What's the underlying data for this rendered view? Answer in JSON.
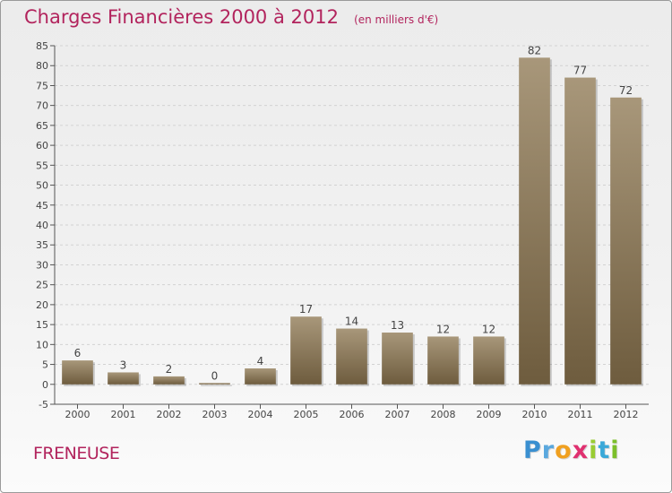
{
  "header": {
    "title": "Charges Financières 2000 à 2012",
    "subtitle": "(en milliers d'€)"
  },
  "footer": {
    "commune": "FRENEUSE"
  },
  "logo": {
    "letters": [
      "P",
      "r",
      "o",
      "x",
      "i",
      "t",
      "i"
    ],
    "colors": [
      "#3a8fd0",
      "#5aa8de",
      "#f0a020",
      "#e03070",
      "#9c3",
      "#3aa8d8",
      "#7bbf2a"
    ]
  },
  "colors": {
    "title": "#b2245d",
    "bar_light": "#a8977a",
    "bar_dark": "#6e5c3e",
    "grid": "#d2d2d2",
    "axis": "#555555"
  },
  "chart_data": {
    "type": "bar",
    "categories": [
      "2000",
      "2001",
      "2002",
      "2003",
      "2004",
      "2005",
      "2006",
      "2007",
      "2008",
      "2009",
      "2010",
      "2011",
      "2012"
    ],
    "values": [
      6,
      3,
      2,
      0,
      4,
      17,
      14,
      13,
      12,
      12,
      82,
      77,
      72
    ],
    "data_labels": [
      "6",
      "3",
      "2",
      "0",
      "4",
      "17",
      "14",
      "13",
      "12",
      "12",
      "82",
      "77",
      "72"
    ],
    "ylim": [
      -5,
      85
    ],
    "yticks": [
      -5,
      0,
      5,
      10,
      15,
      20,
      25,
      30,
      35,
      40,
      45,
      50,
      55,
      60,
      65,
      70,
      75,
      80,
      85
    ],
    "ytick_labels": [
      "-5",
      "0",
      "5",
      "10",
      "15",
      "20",
      "25",
      "30",
      "35",
      "40",
      "45",
      "50",
      "55",
      "60",
      "65",
      "70",
      "75",
      "80",
      "85"
    ],
    "grid": "horizontal-dashed",
    "xlabel": "",
    "ylabel": ""
  }
}
